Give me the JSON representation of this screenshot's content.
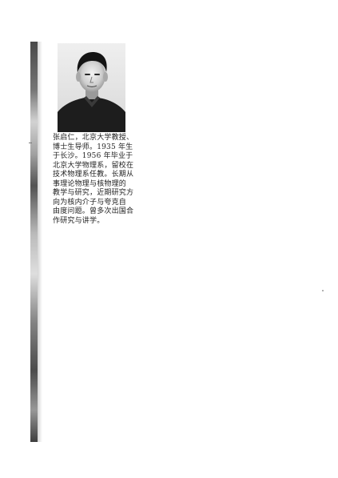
{
  "caption": {
    "lines": [
      "张启仁，北京大学教授、",
      "博士生导师。1935 年生",
      "于长沙。1956 年毕业于",
      "北京大学物理系，留校在",
      "技术物理系任教。长期从",
      "事理论物理与核物理的",
      "教学与研究，近期研究方",
      "向为核内介子与夸克自",
      "由度问题。曾多次出国合",
      "作研究与讲学。"
    ]
  }
}
